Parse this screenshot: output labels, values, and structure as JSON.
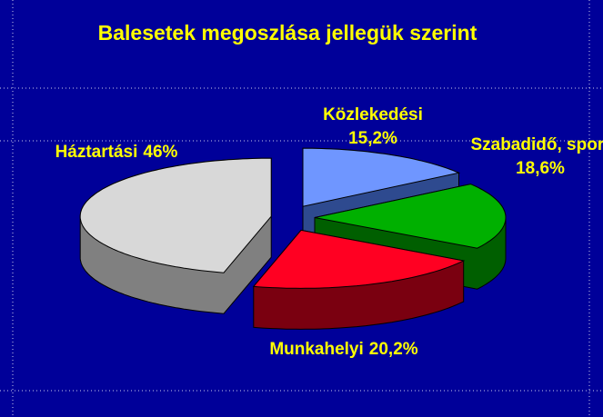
{
  "chart_data": {
    "type": "pie3d",
    "title": "Balesetek megoszlása jellegük szerint",
    "categories": [
      "Közlekedési",
      "Szabadidő, sport",
      "Munkahelyi",
      "Háztartási"
    ],
    "values": [
      15.2,
      18.6,
      20.2,
      46
    ],
    "value_labels": [
      "15,2%",
      "18,6%",
      "20,2%",
      "46%"
    ],
    "colors": [
      "#6f96ff",
      "#00b000",
      "#ff0022",
      "#d8d8d8"
    ],
    "side_colors": [
      "#2e4a8f",
      "#005f00",
      "#7a0010",
      "#808080"
    ],
    "label_color": "#ffff00"
  }
}
